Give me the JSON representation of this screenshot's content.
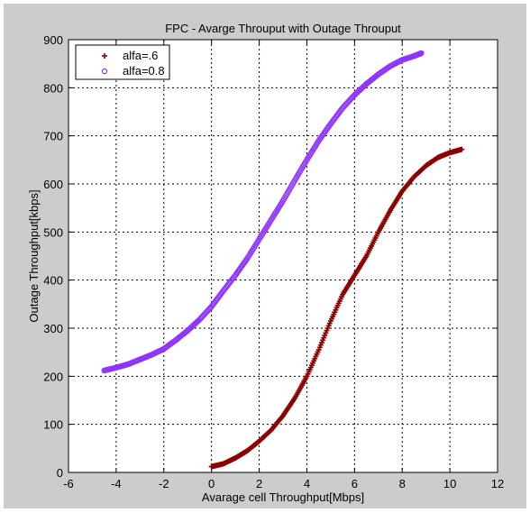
{
  "window": {
    "figure_background": "#cccccc",
    "page_background": "#ffffff",
    "plot_background": "#ffffff"
  },
  "chart_data": {
    "type": "scatter",
    "title": "FPC - Avarge Throuput with Outage Throuput",
    "xlabel": "Avarage cell Throughput[Mbps]",
    "ylabel": "Outage Throughput[kbps]",
    "xlim": [
      -6,
      12
    ],
    "ylim": [
      0,
      900
    ],
    "xticks": [
      -6,
      -4,
      -2,
      0,
      2,
      4,
      6,
      8,
      10,
      12
    ],
    "yticks": [
      0,
      100,
      200,
      300,
      400,
      500,
      600,
      700,
      800,
      900
    ],
    "grid": true,
    "grid_style": "dotted",
    "legend_position": "top-left",
    "series": [
      {
        "name": "alfa=.6",
        "marker": "plus",
        "color": "#8b0000",
        "points": [
          [
            0.0,
            12
          ],
          [
            0.5,
            18
          ],
          [
            1.0,
            30
          ],
          [
            1.5,
            45
          ],
          [
            2.0,
            65
          ],
          [
            2.5,
            88
          ],
          [
            3.0,
            118
          ],
          [
            3.5,
            155
          ],
          [
            4.0,
            200
          ],
          [
            4.5,
            255
          ],
          [
            5.0,
            315
          ],
          [
            5.5,
            370
          ],
          [
            6.0,
            410
          ],
          [
            6.5,
            450
          ],
          [
            7.0,
            500
          ],
          [
            7.5,
            545
          ],
          [
            8.0,
            585
          ],
          [
            8.5,
            615
          ],
          [
            9.0,
            638
          ],
          [
            9.5,
            655
          ],
          [
            10.0,
            665
          ],
          [
            10.5,
            672
          ]
        ]
      },
      {
        "name": "alfa=0.8",
        "marker": "circle",
        "color": "#8f35ff",
        "points": [
          [
            -4.5,
            212
          ],
          [
            -4.0,
            218
          ],
          [
            -3.5,
            225
          ],
          [
            -3.0,
            235
          ],
          [
            -2.5,
            245
          ],
          [
            -2.0,
            257
          ],
          [
            -1.5,
            275
          ],
          [
            -1.0,
            295
          ],
          [
            -0.5,
            318
          ],
          [
            0.0,
            345
          ],
          [
            0.5,
            378
          ],
          [
            1.0,
            410
          ],
          [
            1.5,
            445
          ],
          [
            2.0,
            485
          ],
          [
            2.5,
            525
          ],
          [
            3.0,
            565
          ],
          [
            3.5,
            608
          ],
          [
            4.0,
            650
          ],
          [
            4.5,
            690
          ],
          [
            5.0,
            725
          ],
          [
            5.5,
            758
          ],
          [
            6.0,
            785
          ],
          [
            6.5,
            808
          ],
          [
            7.0,
            828
          ],
          [
            7.5,
            845
          ],
          [
            8.0,
            858
          ],
          [
            8.5,
            866
          ],
          [
            8.8,
            872
          ]
        ]
      }
    ]
  }
}
